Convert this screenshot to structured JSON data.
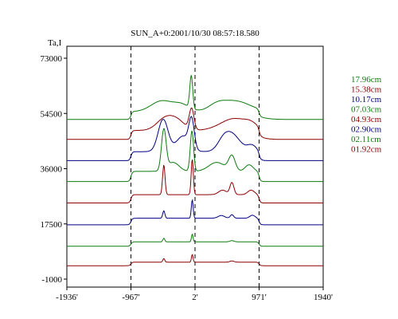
{
  "chart_data": {
    "type": "line",
    "title": "SUN_A+0:2001/10/30 08:57:18.580",
    "ylabel": "Ta,I",
    "xlabel": "",
    "xlim": [
      -1936,
      1940
    ],
    "ylim": [
      -1000,
      73000
    ],
    "x_ticks": [
      {
        "value": -1936,
        "label": "-1936'"
      },
      {
        "value": -967,
        "label": "-967'"
      },
      {
        "value": 2,
        "label": "2'"
      },
      {
        "value": 971,
        "label": "971'"
      },
      {
        "value": 1940,
        "label": "1940'"
      }
    ],
    "y_ticks": [
      {
        "value": 73000,
        "label": "73000"
      },
      {
        "value": 54500,
        "label": "54500"
      },
      {
        "value": 36000,
        "label": "36000"
      },
      {
        "value": 17500,
        "label": "17500"
      },
      {
        "value": -1000,
        "label": "-1000"
      }
    ],
    "vlines": [
      -967,
      2,
      971
    ],
    "grid": false,
    "legend_position": "right",
    "series": [
      {
        "name": "17.96cm",
        "color": "#0e7a0e",
        "baseline": 52500
      },
      {
        "name": "15.38cm",
        "color": "#8b0000",
        "baseline": 45800
      },
      {
        "name": "10.17cm",
        "color": "#000080",
        "baseline": 38700
      },
      {
        "name": "07.03cm",
        "color": "#0e7a0e",
        "baseline": 31700
      },
      {
        "name": "04.93cm",
        "color": "#8b0000",
        "baseline": 24500
      },
      {
        "name": "02.90cm",
        "color": "#000080",
        "baseline": 17200
      },
      {
        "name": "02.11cm",
        "color": "#0e7a0e",
        "baseline": 10000
      },
      {
        "name": "01.92cm",
        "color": "#8b0000",
        "baseline": 3500
      }
    ]
  }
}
